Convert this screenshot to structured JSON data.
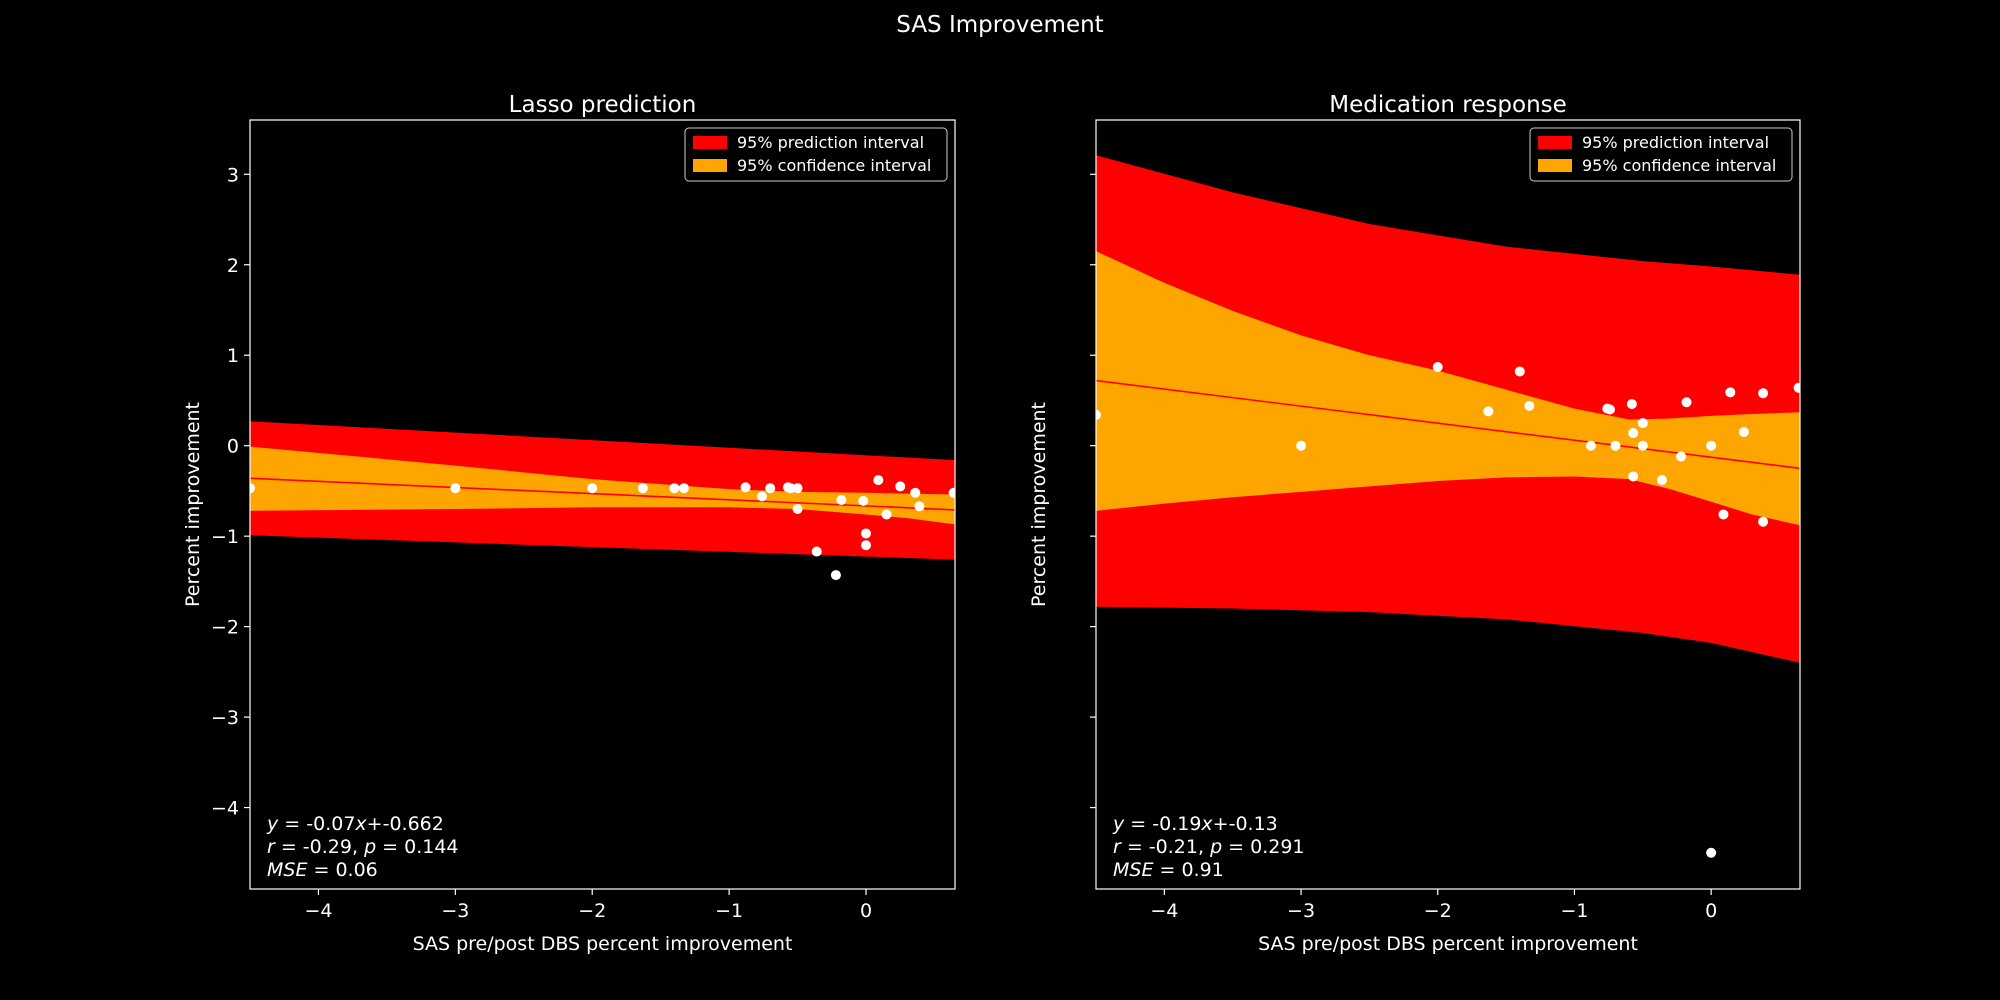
{
  "figure": {
    "title": "SAS Improvement",
    "background": "#000000",
    "foreground": "#ffffff",
    "prediction_color": "#ff0000",
    "confidence_color": "#ffa500",
    "point_color": "#ffffff",
    "line_color": "#ff0000"
  },
  "chart_data": [
    {
      "type": "scatter",
      "title": "Lasso prediction",
      "xlabel": "SAS pre/post DBS percent improvement",
      "ylabel": "Percent improvement",
      "xlim": [
        -4.5,
        0.65
      ],
      "ylim": [
        -4.9,
        3.6
      ],
      "xticks": [
        -4,
        -3,
        -2,
        -1,
        0
      ],
      "xticklabels": [
        "−4",
        "−3",
        "−2",
        "−1",
        "0"
      ],
      "yticks": [
        -4,
        -3,
        -2,
        -1,
        0,
        1,
        2,
        3
      ],
      "yticklabels": [
        "−4",
        "−3",
        "−2",
        "−1",
        "0",
        "1",
        "2",
        "3"
      ],
      "show_ytick_labels": true,
      "legend": {
        "position": "top-right",
        "entries": [
          "95% prediction interval",
          "95% confidence interval"
        ]
      },
      "fit": {
        "slope": -0.07,
        "intercept": -0.662
      },
      "fit_line": {
        "x": [
          -4.5,
          0.65
        ],
        "y": [
          -0.36,
          -0.71
        ]
      },
      "prediction_band": {
        "x": [
          -4.5,
          0.65
        ],
        "upper": [
          0.27,
          -0.16
        ],
        "lower": [
          -0.99,
          -1.26
        ]
      },
      "confidence_band": {
        "x": [
          -4.5,
          -3.0,
          -2.0,
          -1.0,
          -0.5,
          0.0,
          0.3,
          0.65
        ],
        "upper": [
          -0.01,
          -0.22,
          -0.37,
          -0.48,
          -0.51,
          -0.52,
          -0.53,
          -0.54
        ],
        "lower": [
          -0.72,
          -0.7,
          -0.68,
          -0.68,
          -0.7,
          -0.76,
          -0.8,
          -0.87
        ]
      },
      "points": {
        "x": [
          -4.5,
          -3.0,
          -2.0,
          -1.63,
          -1.4,
          -1.33,
          -0.88,
          -0.76,
          -0.7,
          -0.57,
          -0.55,
          -0.5,
          -0.5,
          -0.18,
          -0.02,
          0.0,
          0.0,
          0.09,
          0.15,
          0.25,
          0.36,
          0.39,
          0.64,
          -0.36,
          -0.22
        ],
        "y": [
          -0.47,
          -0.47,
          -0.47,
          -0.47,
          -0.47,
          -0.47,
          -0.46,
          -0.56,
          -0.47,
          -0.46,
          -0.47,
          -0.47,
          -0.7,
          -0.6,
          -0.61,
          -0.97,
          -1.1,
          -0.38,
          -0.76,
          -0.45,
          -0.52,
          -0.67,
          -0.52,
          -1.17,
          -1.43
        ]
      },
      "annotations": [
        {
          "parts": [
            {
              "t": "y",
              "i": true
            },
            {
              "t": " = -0.07"
            },
            {
              "t": "x",
              "i": true
            },
            {
              "t": "+-0.662"
            }
          ]
        },
        {
          "parts": [
            {
              "t": "r",
              "i": true
            },
            {
              "t": " = -0.29, "
            },
            {
              "t": "p",
              "i": true
            },
            {
              "t": " = 0.144"
            }
          ]
        },
        {
          "parts": [
            {
              "t": "MSE",
              "i": true
            },
            {
              "t": " = 0.06"
            }
          ]
        }
      ]
    },
    {
      "type": "scatter",
      "title": "Medication response",
      "xlabel": "SAS pre/post DBS percent improvement",
      "ylabel": "Percent improvement",
      "xlim": [
        -4.5,
        0.65
      ],
      "ylim": [
        -4.9,
        3.6
      ],
      "xticks": [
        -4,
        -3,
        -2,
        -1,
        0
      ],
      "xticklabels": [
        "−4",
        "−3",
        "−2",
        "−1",
        "0"
      ],
      "yticks": [
        -4,
        -3,
        -2,
        -1,
        0,
        1,
        2,
        3
      ],
      "yticklabels": [],
      "show_ytick_labels": false,
      "legend": {
        "position": "top-right",
        "entries": [
          "95% prediction interval",
          "95% confidence interval"
        ]
      },
      "fit": {
        "slope": -0.19,
        "intercept": -0.13
      },
      "fit_line": {
        "x": [
          -4.5,
          0.65
        ],
        "y": [
          0.72,
          -0.25
        ]
      },
      "prediction_band": {
        "x": [
          -4.5,
          -3.5,
          -2.5,
          -1.5,
          -0.5,
          0.0,
          0.65
        ],
        "upper": [
          3.21,
          2.8,
          2.45,
          2.2,
          2.04,
          1.98,
          1.89
        ],
        "lower": [
          -1.78,
          -1.8,
          -1.84,
          -1.92,
          -2.07,
          -2.18,
          -2.4
        ]
      },
      "confidence_band": {
        "x": [
          -4.5,
          -4.0,
          -3.5,
          -3.0,
          -2.5,
          -2.0,
          -1.5,
          -1.0,
          -0.6,
          -0.3,
          0.0,
          0.3,
          0.65
        ],
        "upper": [
          2.15,
          1.8,
          1.49,
          1.22,
          1.0,
          0.83,
          0.62,
          0.41,
          0.29,
          0.3,
          0.33,
          0.35,
          0.37
        ],
        "lower": [
          -0.72,
          -0.64,
          -0.57,
          -0.51,
          -0.45,
          -0.39,
          -0.35,
          -0.34,
          -0.37,
          -0.48,
          -0.62,
          -0.76,
          -0.88
        ]
      },
      "points": {
        "x": [
          -4.5,
          -3.0,
          -2.0,
          -1.63,
          -1.4,
          -1.33,
          -0.88,
          -0.76,
          -0.74,
          -0.7,
          -0.58,
          -0.57,
          -0.5,
          -0.5,
          -0.57,
          -0.36,
          -0.22,
          -0.18,
          0.0,
          0.09,
          0.14,
          0.24,
          0.38,
          0.38,
          0.64,
          0.0
        ],
        "y": [
          0.34,
          0.0,
          0.87,
          0.38,
          0.82,
          0.44,
          0.0,
          0.41,
          0.4,
          0.0,
          0.46,
          0.14,
          0.25,
          0.0,
          -0.34,
          -0.38,
          -0.12,
          0.48,
          0.0,
          -0.76,
          0.59,
          0.15,
          0.58,
          -0.84,
          0.64,
          -4.5
        ]
      },
      "annotations": [
        {
          "parts": [
            {
              "t": "y",
              "i": true
            },
            {
              "t": " = -0.19"
            },
            {
              "t": "x",
              "i": true
            },
            {
              "t": "+-0.13"
            }
          ]
        },
        {
          "parts": [
            {
              "t": "r",
              "i": true
            },
            {
              "t": " = -0.21, "
            },
            {
              "t": "p",
              "i": true
            },
            {
              "t": " = 0.291"
            }
          ]
        },
        {
          "parts": [
            {
              "t": "MSE",
              "i": true
            },
            {
              "t": " = 0.91"
            }
          ]
        }
      ]
    }
  ]
}
